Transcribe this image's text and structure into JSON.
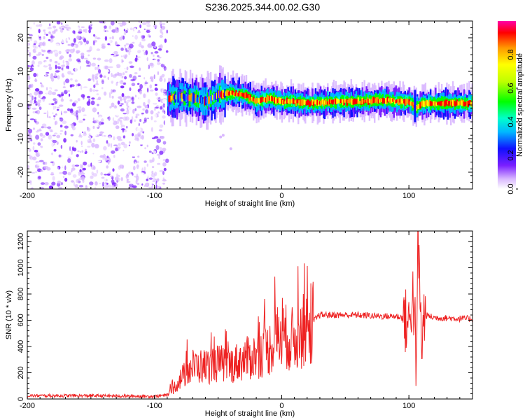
{
  "chart_data": [
    {
      "type": "heatmap",
      "title": "S236.2025.344.00.02.G30",
      "xlabel": "Height of straight line (km)",
      "ylabel": "Frequency (Hz)",
      "xlim": [
        -200,
        150
      ],
      "ylim": [
        -25,
        25
      ],
      "xticks": [
        -200,
        -100,
        0,
        100
      ],
      "yticks": [
        -20,
        -10,
        0,
        10,
        20
      ],
      "colorbar": {
        "label": "Normalized spectral amplitude",
        "range": [
          0.0,
          1.0
        ],
        "ticks": [
          0.0,
          0.2,
          0.4,
          0.6,
          0.8
        ]
      },
      "ridge": {
        "x": [
          -90,
          -80,
          -70,
          -60,
          -50,
          -40,
          -30,
          -20,
          -10,
          0,
          10,
          20,
          40,
          60,
          80,
          90,
          100,
          105,
          110,
          120,
          150
        ],
        "freq": [
          2,
          2.5,
          2,
          1,
          3,
          3.5,
          3,
          1,
          2,
          1,
          1,
          0.5,
          1,
          1,
          1.5,
          1,
          1,
          -1,
          0.5,
          0.5,
          0.5
        ]
      },
      "noise_region": [
        -200,
        -90
      ]
    },
    {
      "type": "line",
      "title": "",
      "xlabel": "Height of straight line (km)",
      "ylabel": "SNR (10 * v/v)",
      "xlim": [
        -200,
        150
      ],
      "ylim": [
        0,
        1280
      ],
      "xticks": [
        -200,
        -100,
        0,
        100
      ],
      "yticks": [
        0,
        200,
        400,
        600,
        800,
        1000,
        1200
      ],
      "color": "#ee2222",
      "series": [
        {
          "name": "SNR",
          "x": [
            -200,
            -150,
            -100,
            -90,
            -85,
            -80,
            -70,
            -60,
            -50,
            -40,
            -30,
            -20,
            -10,
            -5,
            0,
            10,
            20,
            30,
            40,
            60,
            80,
            90,
            95,
            100,
            103,
            106,
            108,
            110,
            112,
            120,
            150
          ],
          "y": [
            25,
            25,
            20,
            30,
            80,
            150,
            250,
            250,
            270,
            260,
            300,
            330,
            380,
            460,
            480,
            450,
            550,
            640,
            640,
            640,
            630,
            630,
            620,
            560,
            800,
            400,
            1000,
            400,
            640,
            620,
            610
          ]
        }
      ]
    }
  ]
}
